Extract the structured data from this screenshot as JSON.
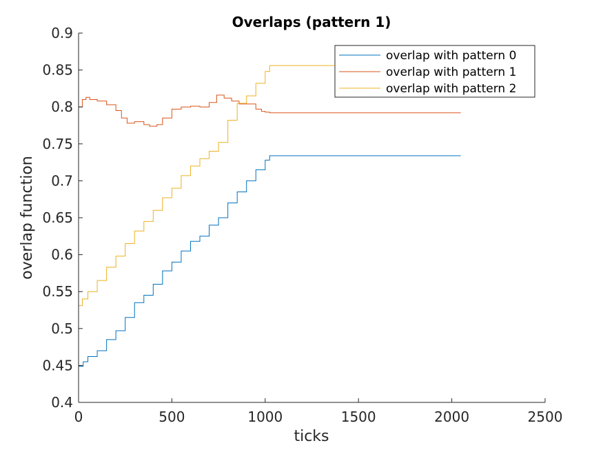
{
  "chart_data": {
    "type": "line",
    "title": "Overlaps (pattern 1)",
    "xlabel": "ticks",
    "ylabel": "overlap function",
    "xlim": [
      0,
      2500
    ],
    "ylim": [
      0.4,
      0.9
    ],
    "xticks": [
      0,
      500,
      1000,
      1500,
      2000,
      2500
    ],
    "yticks": [
      0.4,
      0.45,
      0.5,
      0.55,
      0.6,
      0.65,
      0.7,
      0.75,
      0.8,
      0.85,
      0.9
    ],
    "xtick_labels": [
      "0",
      "500",
      "1000",
      "1500",
      "2000",
      "2500"
    ],
    "ytick_labels": [
      "0.4",
      "0.45",
      "0.5",
      "0.55",
      "0.6",
      "0.65",
      "0.7",
      "0.75",
      "0.8",
      "0.85",
      "0.9"
    ],
    "grid": false,
    "legend_position": "top-right",
    "step": true,
    "series": [
      {
        "name": "overlap with pattern 0",
        "color": "#0072BD",
        "x": [
          0,
          25,
          50,
          100,
          150,
          200,
          250,
          300,
          350,
          400,
          450,
          500,
          550,
          600,
          650,
          700,
          750,
          800,
          850,
          900,
          950,
          1000,
          1024,
          2048
        ],
        "y": [
          0.449,
          0.455,
          0.462,
          0.47,
          0.485,
          0.497,
          0.515,
          0.535,
          0.545,
          0.56,
          0.578,
          0.59,
          0.605,
          0.618,
          0.625,
          0.64,
          0.65,
          0.67,
          0.685,
          0.7,
          0.715,
          0.728,
          0.734,
          0.734
        ]
      },
      {
        "name": "overlap with pattern 1",
        "color": "#D95319",
        "x": [
          0,
          20,
          40,
          60,
          100,
          150,
          200,
          230,
          260,
          300,
          350,
          380,
          420,
          450,
          500,
          550,
          600,
          650,
          700,
          740,
          780,
          820,
          860,
          900,
          950,
          980,
          1000,
          1024,
          2048
        ],
        "y": [
          0.8,
          0.81,
          0.813,
          0.81,
          0.808,
          0.803,
          0.795,
          0.785,
          0.778,
          0.78,
          0.776,
          0.774,
          0.776,
          0.785,
          0.797,
          0.8,
          0.801,
          0.8,
          0.806,
          0.816,
          0.812,
          0.808,
          0.804,
          0.804,
          0.797,
          0.794,
          0.793,
          0.792,
          0.792
        ]
      },
      {
        "name": "overlap with pattern 2",
        "color": "#EDB120",
        "x": [
          0,
          20,
          50,
          100,
          150,
          200,
          250,
          300,
          350,
          400,
          450,
          500,
          550,
          600,
          650,
          700,
          750,
          800,
          850,
          900,
          950,
          1000,
          1024,
          2048
        ],
        "y": [
          0.531,
          0.54,
          0.55,
          0.565,
          0.583,
          0.598,
          0.615,
          0.632,
          0.645,
          0.66,
          0.677,
          0.69,
          0.707,
          0.72,
          0.73,
          0.74,
          0.752,
          0.782,
          0.805,
          0.815,
          0.832,
          0.848,
          0.856,
          0.856
        ]
      }
    ]
  }
}
